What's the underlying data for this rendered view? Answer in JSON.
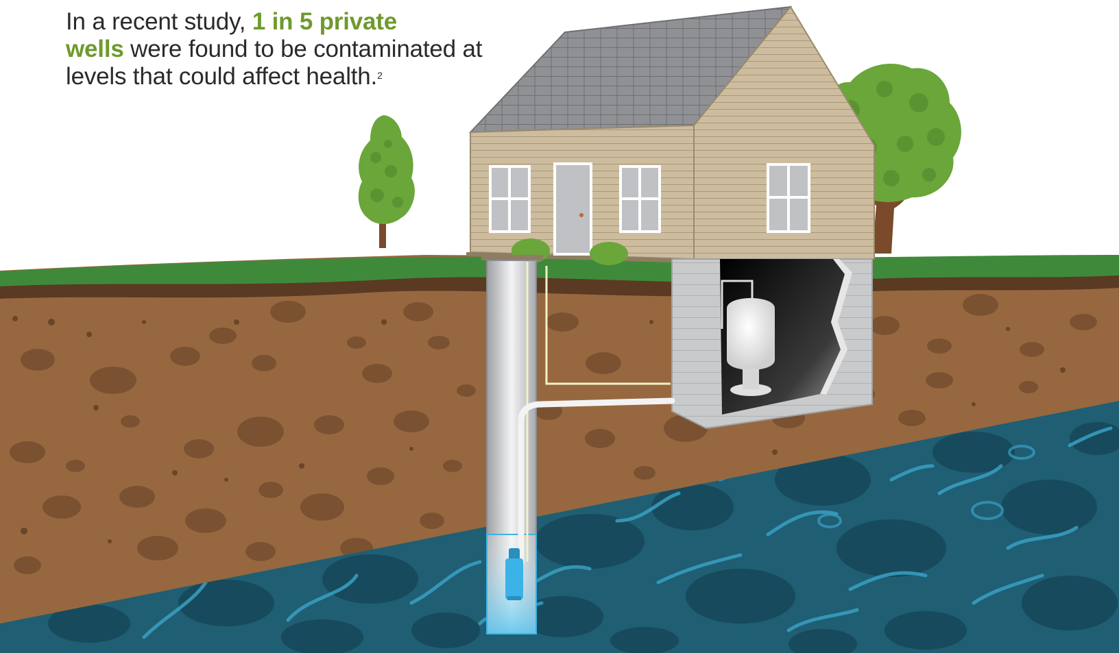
{
  "caption": {
    "intro": "In a recent study, ",
    "highlight_line1": "1 in 5 private",
    "highlight_line2": "wells",
    "rest": " were found to be contaminated at levels that could affect health.",
    "footnote": "2"
  },
  "colors": {
    "highlight": "#6e9a2c",
    "text": "#2a2a2a",
    "grass": "#3f8a3a",
    "soil": "#97683f",
    "soil_rock": "#7a5232",
    "topsoil_band": "#5a3a22",
    "aquifer": "#1f5e73",
    "aquifer_rock": "#174a5c",
    "aquifer_crack": "#3aa0c3",
    "siding": "#c9b99a",
    "roof": "#8d8f93",
    "foundation": "#c7c8ca",
    "tree_green": "#6aa63a",
    "trunk": "#7a4a2a",
    "pump_blue": "#3bb3e6"
  },
  "icons": [
    "house-illustration",
    "tree-small-icon",
    "tree-large-icon",
    "well-casing-icon",
    "submersible-pump-icon",
    "pressure-tank-icon",
    "water-pipe-icon"
  ]
}
